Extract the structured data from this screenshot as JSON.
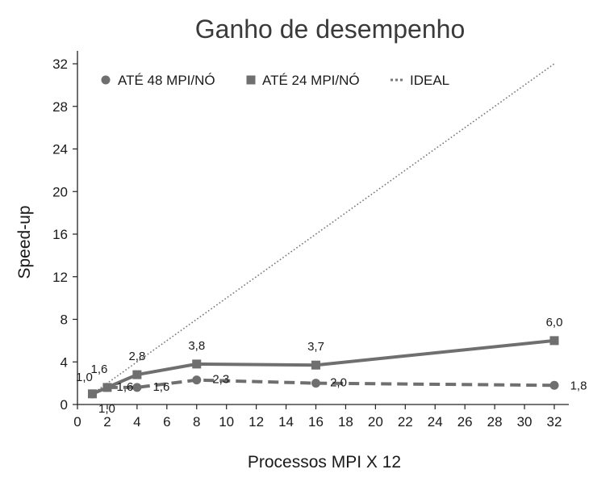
{
  "chart_data": {
    "type": "line",
    "title": "Ganho de desempenho",
    "xlabel": "Processos MPI X 12",
    "ylabel": "Speed-up",
    "xlim": [
      0,
      33
    ],
    "ylim": [
      0,
      33
    ],
    "x_ticks": [
      0,
      2,
      4,
      6,
      8,
      10,
      12,
      14,
      16,
      18,
      20,
      22,
      24,
      26,
      28,
      30,
      32
    ],
    "y_ticks": [
      0,
      4,
      8,
      12,
      16,
      20,
      24,
      28,
      32
    ],
    "grid": false,
    "legend_position": "top-left",
    "series": [
      {
        "name": "ATÉ 48 MPI/NÓ",
        "marker": "circle",
        "line": "dashed",
        "color": "#6f6f6f",
        "x": [
          1,
          2,
          4,
          8,
          16,
          32
        ],
        "y": [
          1.0,
          1.6,
          1.6,
          2.3,
          2.0,
          1.8
        ],
        "labels": [
          "1,0",
          "1,6",
          "1,6",
          "2,3",
          "2,0",
          "1,8"
        ]
      },
      {
        "name": "ATÉ 24 MPI/NÓ",
        "marker": "square",
        "line": "solid",
        "color": "#6f6f6f",
        "x": [
          1,
          2,
          4,
          8,
          16,
          32
        ],
        "y": [
          1.0,
          1.6,
          2.8,
          3.8,
          3.7,
          6.0
        ],
        "labels": [
          "1,0",
          "1,6",
          "2,8",
          "3,8",
          "3,7",
          "6,0"
        ]
      },
      {
        "name": "IDEAL",
        "marker": "none",
        "line": "dotted",
        "color": "#6f6f6f",
        "x": [
          1,
          2,
          4,
          8,
          16,
          32
        ],
        "y": [
          1,
          2,
          4,
          8,
          16,
          32
        ],
        "labels": []
      }
    ]
  }
}
